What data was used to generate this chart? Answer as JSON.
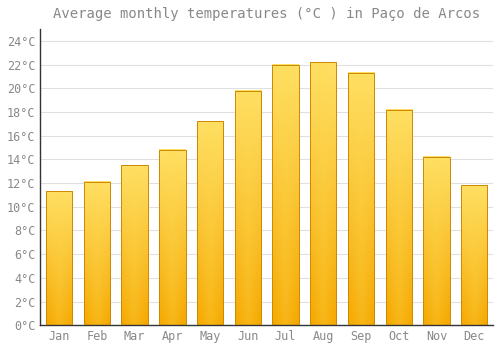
{
  "title": "Average monthly temperatures (°C ) in Paço de Arcos",
  "months": [
    "Jan",
    "Feb",
    "Mar",
    "Apr",
    "May",
    "Jun",
    "Jul",
    "Aug",
    "Sep",
    "Oct",
    "Nov",
    "Dec"
  ],
  "values": [
    11.3,
    12.1,
    13.5,
    14.8,
    17.2,
    19.8,
    22.0,
    22.2,
    21.3,
    18.2,
    14.2,
    11.8
  ],
  "bar_color_bottom": "#F5A800",
  "bar_color_top": "#FFE066",
  "bar_color_center": "#FFD040",
  "bar_edge_color": "#CC8800",
  "background_color": "#FFFFFF",
  "grid_color": "#E0E0E0",
  "text_color": "#888888",
  "ylim": [
    0,
    25
  ],
  "yticks": [
    0,
    2,
    4,
    6,
    8,
    10,
    12,
    14,
    16,
    18,
    20,
    22,
    24
  ],
  "ytick_labels": [
    "0°C",
    "2°C",
    "4°C",
    "6°C",
    "8°C",
    "10°C",
    "12°C",
    "14°C",
    "16°C",
    "18°C",
    "20°C",
    "22°C",
    "24°C"
  ],
  "title_fontsize": 10,
  "tick_fontsize": 8.5
}
